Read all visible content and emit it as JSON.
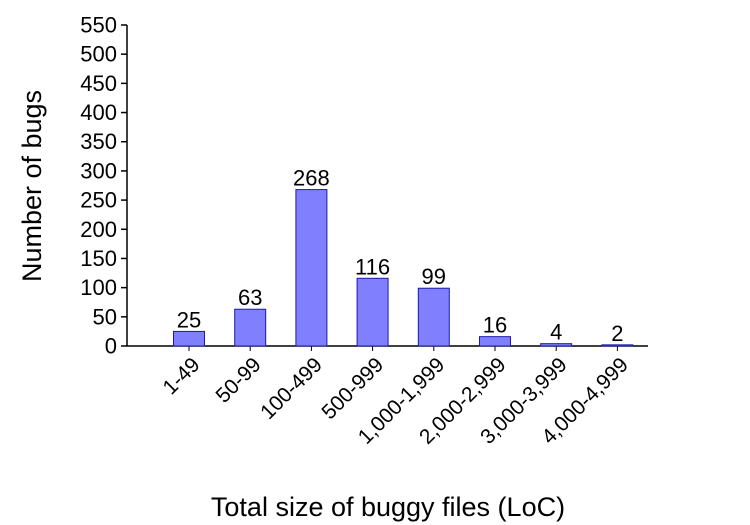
{
  "chart_data": {
    "type": "bar",
    "title": "",
    "xlabel": "Total size of buggy files (LoC)",
    "ylabel": "Number of bugs",
    "categories": [
      "1-49",
      "50-99",
      "100-499",
      "500-999",
      "1,000-1,999",
      "2,000-2,999",
      "3,000-3,999",
      "4,000-4,999"
    ],
    "values": [
      25,
      63,
      268,
      116,
      99,
      16,
      4,
      2
    ],
    "data_labels": [
      "25",
      "63",
      "268",
      "116",
      "99",
      "16",
      "4",
      "2"
    ],
    "ylim": [
      0,
      550
    ],
    "yticks": [
      0,
      50,
      100,
      150,
      200,
      250,
      300,
      350,
      400,
      450,
      500,
      550
    ],
    "grid": false,
    "legend": "none",
    "colors": {
      "bar_fill": "#8080ff",
      "bar_stroke": "#1a1aa6",
      "axis": "#000000"
    }
  }
}
